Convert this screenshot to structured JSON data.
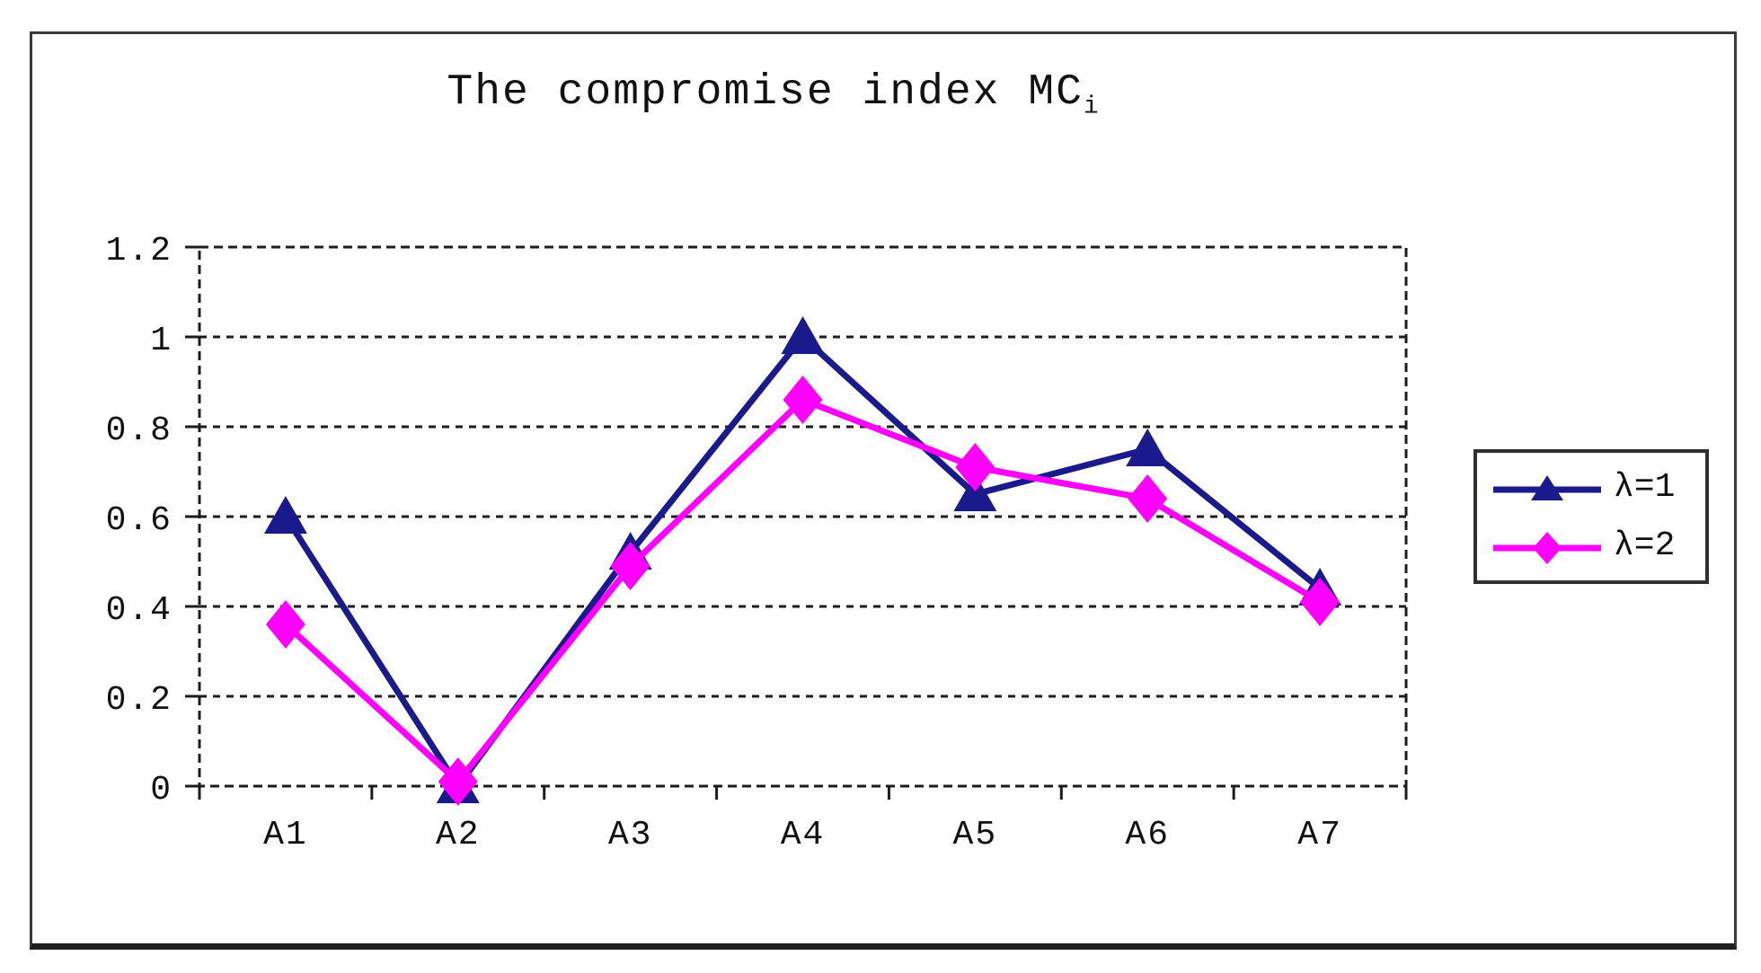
{
  "figure": {
    "background": "#ffffff",
    "frame_border_color": "#3a3a3a"
  },
  "chart_data": {
    "type": "line",
    "title": "The compromise index MCi",
    "title_main": "The compromise index MC",
    "title_sub": "i",
    "categories": [
      "A1",
      "A2",
      "A3",
      "A4",
      "A5",
      "A6",
      "A7"
    ],
    "series": [
      {
        "name": "λ=1",
        "color": "#1a1a8c",
        "marker": "triangle",
        "values": [
          0.6,
          0.0,
          0.52,
          1.0,
          0.65,
          0.75,
          0.44
        ]
      },
      {
        "name": "λ=2",
        "color": "#ff00ff",
        "marker": "diamond",
        "values": [
          0.36,
          0.01,
          0.49,
          0.86,
          0.71,
          0.64,
          0.41
        ]
      }
    ],
    "xlabel": "",
    "ylabel": "",
    "ylim": [
      0,
      1.2
    ],
    "yticks": [
      0,
      0.2,
      0.4,
      0.6,
      0.8,
      1,
      1.2
    ],
    "ytick_labels": [
      "0",
      "0.2",
      "0.4",
      "0.6",
      "0.8",
      "1",
      "1.2"
    ],
    "grid": "horizontal-dashed",
    "plot_border": "dashed",
    "legend_position": "right",
    "axis_color": "#1c1c1c",
    "text_color": "#111111"
  }
}
